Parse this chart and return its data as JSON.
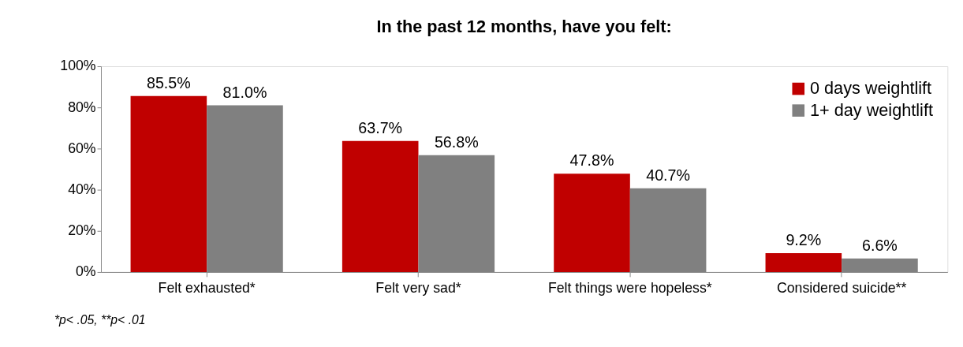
{
  "chart_data": {
    "type": "bar",
    "title": "In the past 12 months, have you felt:",
    "categories": [
      "Felt exhausted*",
      "Felt very sad*",
      "Felt things were hopeless*",
      "Considered suicide**"
    ],
    "series": [
      {
        "name": "0 days weightlift",
        "color": "#c00000",
        "values": [
          85.5,
          63.7,
          47.8,
          9.2
        ],
        "value_labels": [
          "85.5%",
          "63.7%",
          "47.8%",
          "9.2%"
        ]
      },
      {
        "name": "1+ day weightlift",
        "color": "#808080",
        "values": [
          81.0,
          56.8,
          40.7,
          6.6
        ],
        "value_labels": [
          "81.0%",
          "56.8%",
          "40.7%",
          "6.6%"
        ]
      }
    ],
    "ylim": [
      0,
      100
    ],
    "yticks": [
      {
        "value": 0,
        "label": "0%"
      },
      {
        "value": 20,
        "label": "20%"
      },
      {
        "value": 40,
        "label": "40%"
      },
      {
        "value": 60,
        "label": "60%"
      },
      {
        "value": 80,
        "label": "80%"
      },
      {
        "value": 100,
        "label": "100%"
      }
    ],
    "grid": false,
    "legend": "top right",
    "annotations": [
      "*p< .05, **p< .01"
    ]
  }
}
